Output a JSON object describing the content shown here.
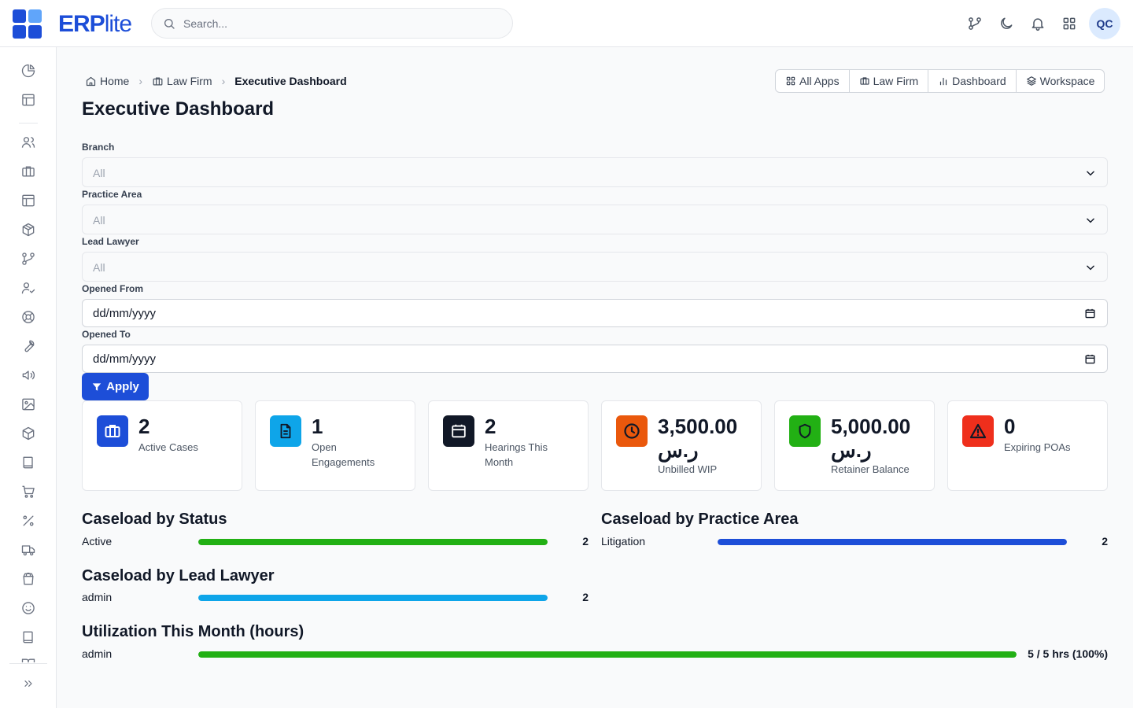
{
  "app": {
    "brand_main": "ERP",
    "brand_sub": "lite"
  },
  "search": {
    "placeholder": "Search..."
  },
  "user": {
    "initials": "QC"
  },
  "breadcrumb": {
    "home": "Home",
    "module": "Law Firm",
    "current": "Executive Dashboard"
  },
  "quick_nav": {
    "all_apps": "All Apps",
    "law_firm": "Law Firm",
    "dashboard": "Dashboard",
    "workspace": "Workspace"
  },
  "page": {
    "title": "Executive Dashboard"
  },
  "filters": {
    "branch": {
      "label": "Branch",
      "value": "All"
    },
    "practice_area": {
      "label": "Practice Area",
      "value": "All"
    },
    "lead_lawyer": {
      "label": "Lead Lawyer",
      "value": "All"
    },
    "opened_from": {
      "label": "Opened From",
      "value": "dd/mm/yyyy"
    },
    "opened_to": {
      "label": "Opened To",
      "value": "dd/mm/yyyy"
    },
    "apply_label": "Apply"
  },
  "kpis": [
    {
      "value": "2",
      "label": "Active Cases",
      "icon": "briefcase-icon",
      "color": "#1d4ed8"
    },
    {
      "value": "1",
      "label": "Open Engagements",
      "icon": "document-icon",
      "color": "#0ea5e9"
    },
    {
      "value": "2",
      "label": "Hearings This Month",
      "icon": "calendar-icon",
      "color": "#111827"
    },
    {
      "value": "3,500.00 ر.س",
      "label": "Unbilled WIP",
      "icon": "clock-icon",
      "color": "#ea580c"
    },
    {
      "value": "5,000.00 ر.س",
      "label": "Retainer Balance",
      "icon": "shield-icon",
      "color": "#16a34a"
    },
    {
      "value": "0",
      "label": "Expiring POAs",
      "icon": "warning-icon",
      "color": "#ef2f1c"
    }
  ],
  "sections": {
    "by_status": {
      "title": "Caseload by Status",
      "rows": [
        {
          "label": "Active",
          "value": "2",
          "percent": 100,
          "color": "#22b014"
        }
      ]
    },
    "by_practice": {
      "title": "Caseload by Practice Area",
      "rows": [
        {
          "label": "Litigation",
          "value": "2",
          "percent": 100,
          "color": "#1d4ed8"
        }
      ]
    },
    "by_lawyer": {
      "title": "Caseload by Lead Lawyer",
      "rows": [
        {
          "label": "admin",
          "value": "2",
          "percent": 100,
          "color": "#0ea5e9"
        }
      ]
    },
    "utilization": {
      "title": "Utilization This Month (hours)",
      "rows": [
        {
          "label": "admin",
          "value": "5 / 5 hrs (100%)",
          "percent": 100,
          "color": "#22b014"
        }
      ]
    }
  }
}
